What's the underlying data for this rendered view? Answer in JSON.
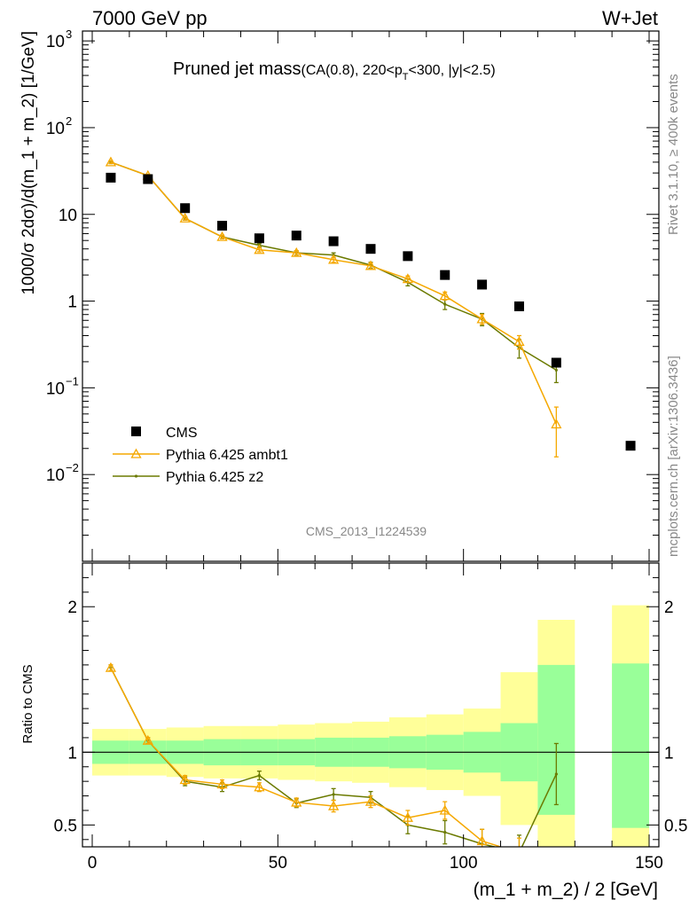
{
  "header": {
    "left": "7000 GeV pp",
    "right": "W+Jet"
  },
  "side_labels": {
    "rivet": "Rivet 3.1.10, ≥ 400k events",
    "mcplots": "mcplots.cern.ch [arXiv:1306.3436]"
  },
  "main_panel": {
    "title_main": "Pruned jet mass",
    "title_cuts": "(CA(0.8), 220<p",
    "title_sub": "T",
    "title_tail": "<300, |y|<2.5)",
    "analysis_id": "CMS_2013_I1224539",
    "ylabel": "1000/σ 2dσ)/d(m_1 + m_2) [1/GeV]"
  },
  "ratio_panel": {
    "ylabel": "Ratio to CMS"
  },
  "xlabel": "(m_1 + m_2) / 2 [GeV]",
  "legend": {
    "cms": "CMS",
    "ambt1": "Pythia 6.425 ambt1",
    "z2": "Pythia 6.425 z2"
  },
  "colors": {
    "cms": "#000000",
    "ambt1": "#f5a800",
    "z2": "#6b7a00",
    "band_inner": "#99ff99",
    "band_outer": "#ffff99"
  },
  "chart_data": {
    "type": "line",
    "xlim": [
      0,
      150
    ],
    "main_ylim": [
      0.001,
      1300
    ],
    "main_yscale": "log",
    "ratio_ylim": [
      0.35,
      2.3
    ],
    "x_ticks": [
      0,
      50,
      100,
      150
    ],
    "main_y_ticks": [
      {
        "v": 0.01,
        "base": "10",
        "exp": "−2"
      },
      {
        "v": 0.1,
        "base": "10",
        "exp": "−1"
      },
      {
        "v": 1,
        "label": "1"
      },
      {
        "v": 10,
        "label": "10"
      },
      {
        "v": 100,
        "base": "10",
        "exp": "2"
      },
      {
        "v": 1000,
        "base": "10",
        "exp": "3"
      }
    ],
    "ratio_y_ticks": [
      {
        "v": 0.5,
        "label": "0.5"
      },
      {
        "v": 1,
        "label": "1"
      },
      {
        "v": 2,
        "label": "2"
      }
    ],
    "cms": {
      "name": "CMS",
      "x": [
        5,
        15,
        25,
        35,
        45,
        55,
        65,
        75,
        85,
        95,
        105,
        115,
        125,
        145
      ],
      "y": [
        26.5,
        25.5,
        11.8,
        7.4,
        5.3,
        5.7,
        4.9,
        4.0,
        3.3,
        2.0,
        1.55,
        0.87,
        0.195,
        0.0215
      ]
    },
    "ambt1": {
      "name": "Pythia 6.425 ambt1",
      "x": [
        5,
        15,
        25,
        35,
        45,
        55,
        65,
        75,
        85,
        95,
        105,
        115,
        125
      ],
      "y": [
        40,
        28,
        9.0,
        5.5,
        3.9,
        3.6,
        3.0,
        2.55,
        1.8,
        1.15,
        0.62,
        0.34,
        0.038
      ],
      "err": [
        1.5,
        1.0,
        0.4,
        0.25,
        0.2,
        0.2,
        0.2,
        0.2,
        0.15,
        0.12,
        0.08,
        0.06,
        0.022
      ]
    },
    "z2": {
      "name": "Pythia 6.425 z2",
      "x": [
        5,
        15,
        25,
        35,
        45,
        55,
        65,
        75,
        85,
        95,
        105,
        115,
        125
      ],
      "y": [
        40,
        28,
        9.0,
        5.5,
        4.4,
        3.6,
        3.4,
        2.6,
        1.65,
        0.92,
        0.62,
        0.29,
        0.16
      ],
      "err": [
        1.5,
        1.0,
        0.4,
        0.25,
        0.2,
        0.2,
        0.2,
        0.2,
        0.15,
        0.12,
        0.1,
        0.07,
        0.045
      ]
    },
    "ratio_ambt1": {
      "x": [
        5,
        15,
        25,
        35,
        45,
        55,
        65,
        75,
        85,
        95,
        105,
        115
      ],
      "y": [
        1.58,
        1.08,
        0.81,
        0.78,
        0.76,
        0.655,
        0.63,
        0.66,
        0.55,
        0.6,
        0.39,
        0.31
      ],
      "err": [
        0.02,
        0.02,
        0.03,
        0.03,
        0.03,
        0.03,
        0.04,
        0.04,
        0.05,
        0.06,
        0.08,
        0.1
      ]
    },
    "ratio_z2": {
      "x": [
        5,
        15,
        25,
        35,
        45,
        55,
        65,
        75,
        85,
        95,
        105,
        115,
        125
      ],
      "y": [
        1.58,
        1.08,
        0.8,
        0.76,
        0.84,
        0.65,
        0.71,
        0.69,
        0.5,
        0.45,
        0.37,
        0.31,
        0.85
      ],
      "err": [
        0.02,
        0.02,
        0.03,
        0.03,
        0.03,
        0.03,
        0.04,
        0.04,
        0.06,
        0.08,
        0.1,
        0.12,
        0.21
      ]
    },
    "uncertainty_bands": {
      "bins": [
        [
          0,
          10
        ],
        [
          10,
          20
        ],
        [
          20,
          30
        ],
        [
          30,
          40
        ],
        [
          40,
          50
        ],
        [
          50,
          60
        ],
        [
          60,
          70
        ],
        [
          70,
          80
        ],
        [
          80,
          90
        ],
        [
          90,
          100
        ],
        [
          100,
          110
        ],
        [
          110,
          120
        ],
        [
          120,
          130
        ],
        [
          140,
          150
        ]
      ],
      "inner": [
        [
          0.92,
          1.08
        ],
        [
          0.92,
          1.08
        ],
        [
          0.92,
          1.08
        ],
        [
          0.91,
          1.09
        ],
        [
          0.91,
          1.09
        ],
        [
          0.91,
          1.09
        ],
        [
          0.9,
          1.1
        ],
        [
          0.9,
          1.1
        ],
        [
          0.89,
          1.11
        ],
        [
          0.88,
          1.12
        ],
        [
          0.86,
          1.14
        ],
        [
          0.8,
          1.2
        ],
        [
          0.57,
          1.6
        ],
        [
          0.48,
          1.61
        ]
      ],
      "outer": [
        [
          0.84,
          1.16
        ],
        [
          0.84,
          1.16
        ],
        [
          0.83,
          1.17
        ],
        [
          0.82,
          1.18
        ],
        [
          0.82,
          1.18
        ],
        [
          0.81,
          1.19
        ],
        [
          0.8,
          1.2
        ],
        [
          0.79,
          1.21
        ],
        [
          0.76,
          1.24
        ],
        [
          0.74,
          1.26
        ],
        [
          0.7,
          1.3
        ],
        [
          0.5,
          1.55
        ],
        [
          0.35,
          1.91
        ],
        [
          0.35,
          2.01
        ]
      ]
    }
  }
}
